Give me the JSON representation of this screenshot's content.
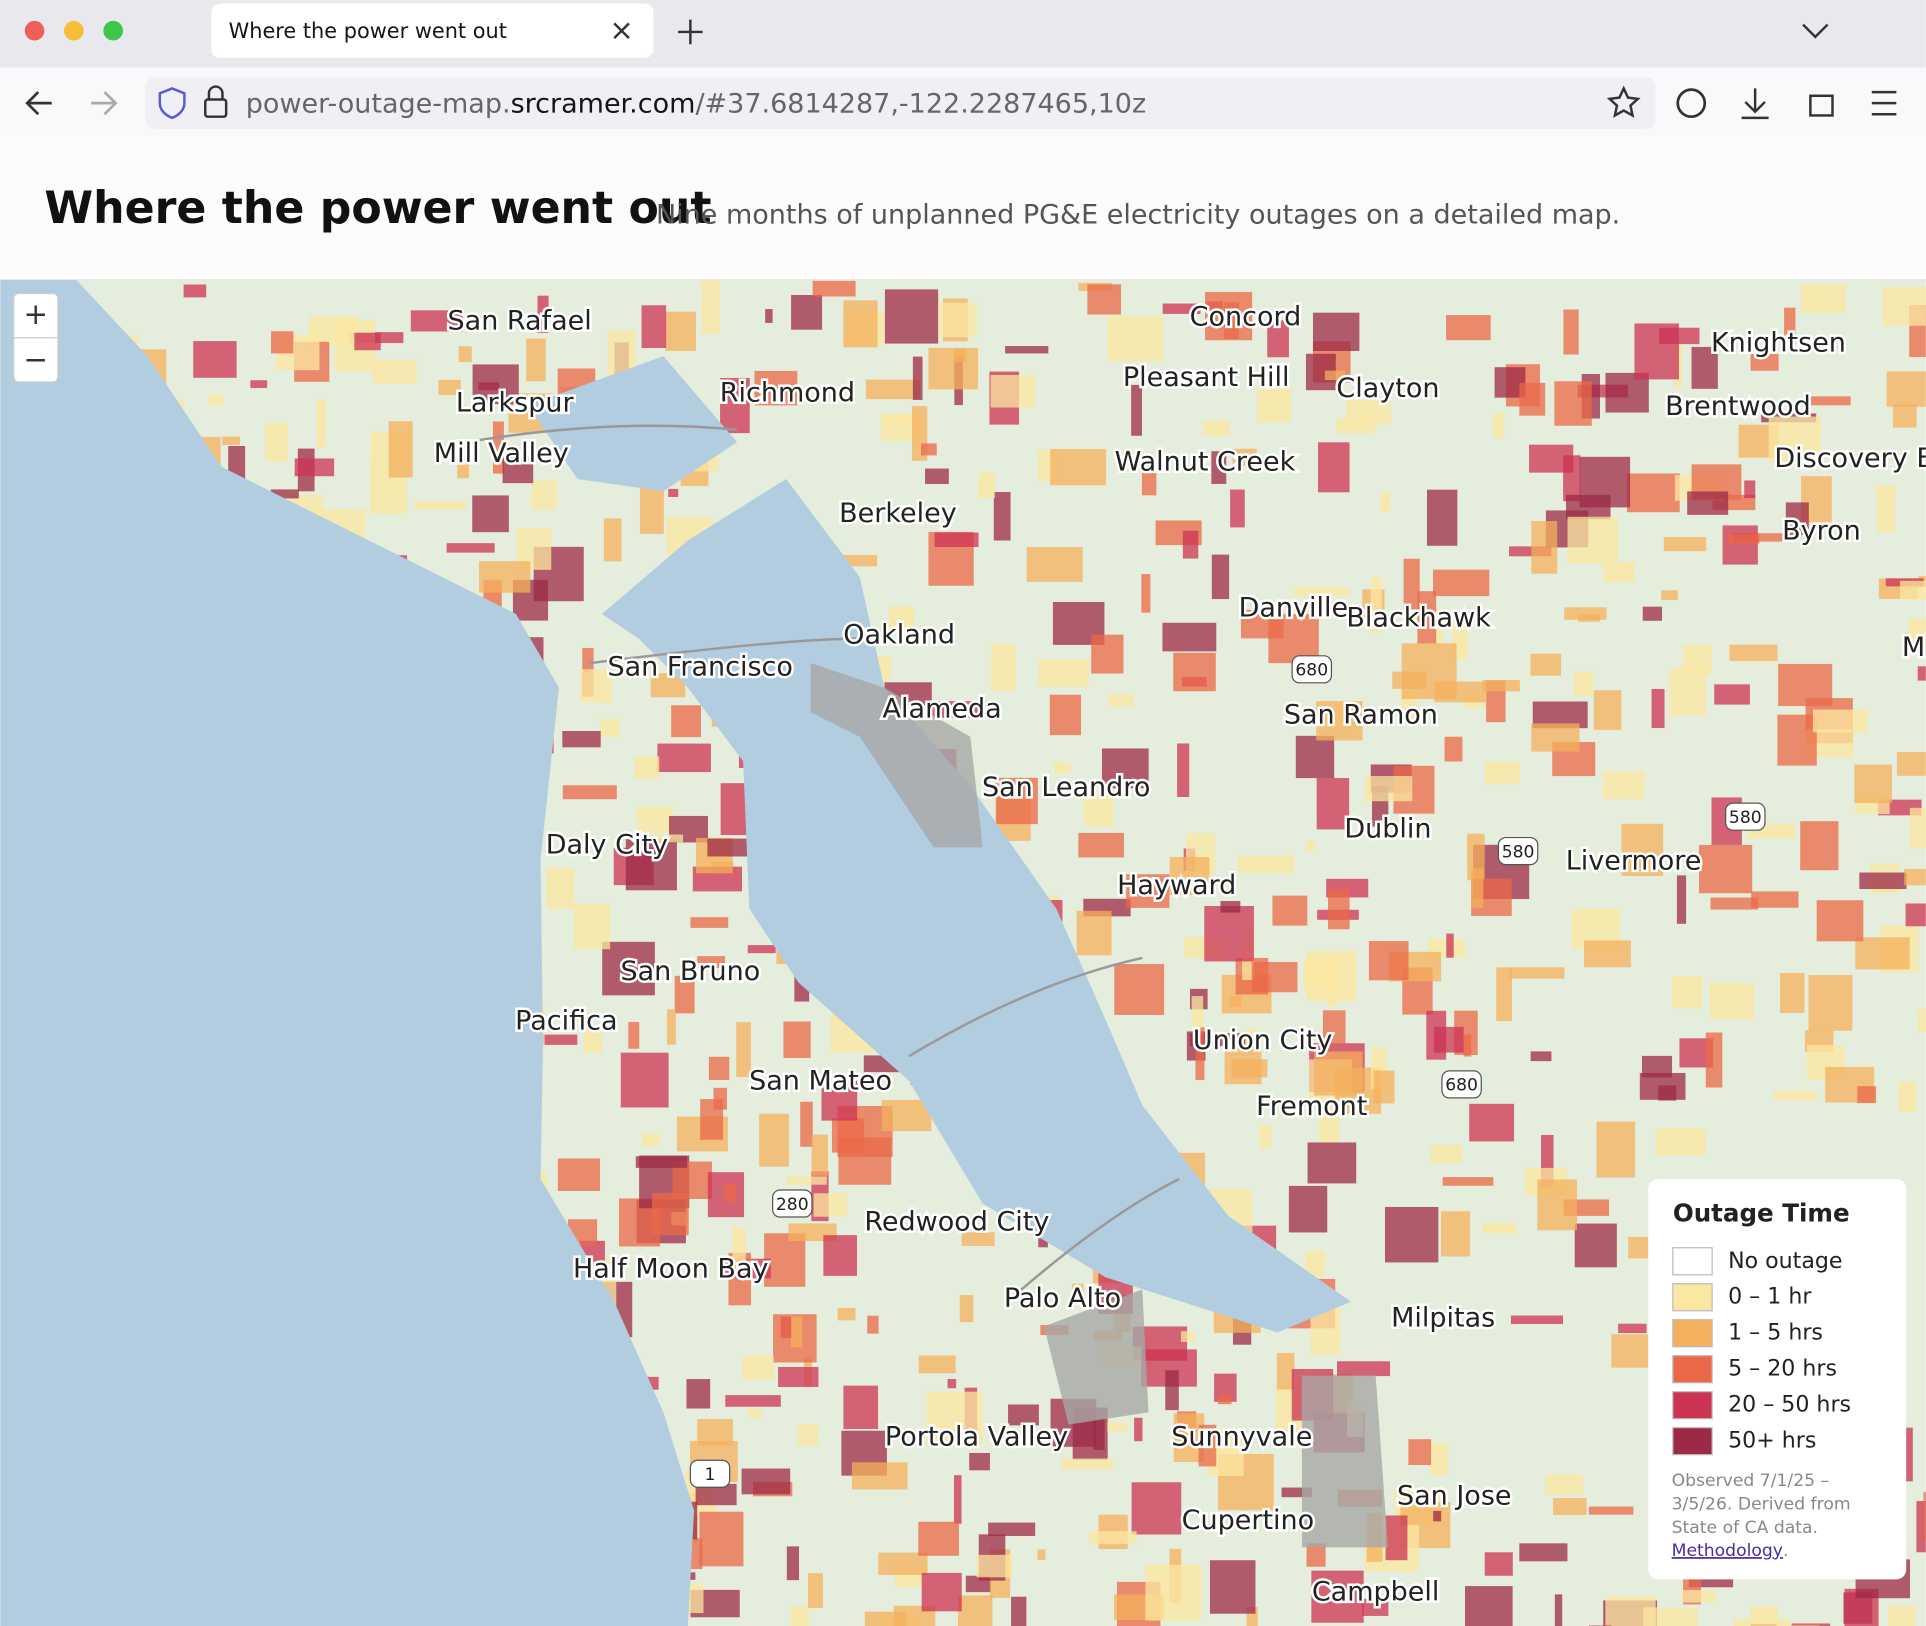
{
  "browser": {
    "tab_title": "Where the power went out",
    "url": {
      "prefix": "power-outage-map.",
      "domain": "srcramer.com",
      "path": "/#37.6814287,-122.2287465,10z"
    }
  },
  "header": {
    "title": "Where the power went out",
    "subtitle": "Nine months of unplanned PG&E electricity outages on a detailed map."
  },
  "map": {
    "zoom_in": "+",
    "zoom_out": "−",
    "places": [
      "San Rafael",
      "Larkspur",
      "Mill Valley",
      "Richmond",
      "Berkeley",
      "Oakland",
      "San Francisco",
      "Alameda",
      "San Leandro",
      "Daly City",
      "San Bruno",
      "Pacifica",
      "San Mateo",
      "Half Moon Bay",
      "Redwood City",
      "Palo Alto",
      "Portola Valley",
      "Sunnyvale",
      "Cupertino",
      "Campbell",
      "San Jose",
      "Milpitas",
      "Fremont",
      "Union City",
      "Hayward",
      "Dublin",
      "Livermore",
      "San Ramon",
      "Danville",
      "Blackhawk",
      "Walnut Creek",
      "Pleasant Hill",
      "Concord",
      "Clayton",
      "Knightsen",
      "Brentwood",
      "Discovery B",
      "Byron",
      "M"
    ],
    "shields": [
      "680",
      "580",
      "580",
      "680",
      "280",
      "1"
    ]
  },
  "legend": {
    "title": "Outage Time",
    "items": [
      {
        "label": "No outage",
        "color": "#ffffff"
      },
      {
        "label": "0 – 1 hr",
        "color": "#fbe7a1"
      },
      {
        "label": "1 – 5 hrs",
        "color": "#f4b05c"
      },
      {
        "label": "5 – 20 hrs",
        "color": "#ea6848"
      },
      {
        "label": "20 – 50 hrs",
        "color": "#cc3353"
      },
      {
        "label": "50+ hrs",
        "color": "#9c2a47"
      }
    ],
    "note_lines": [
      "Observed 7/1/25 –",
      "3/5/26. Derived from",
      "State of CA data."
    ],
    "link": "Methodology",
    "note_end": "."
  }
}
